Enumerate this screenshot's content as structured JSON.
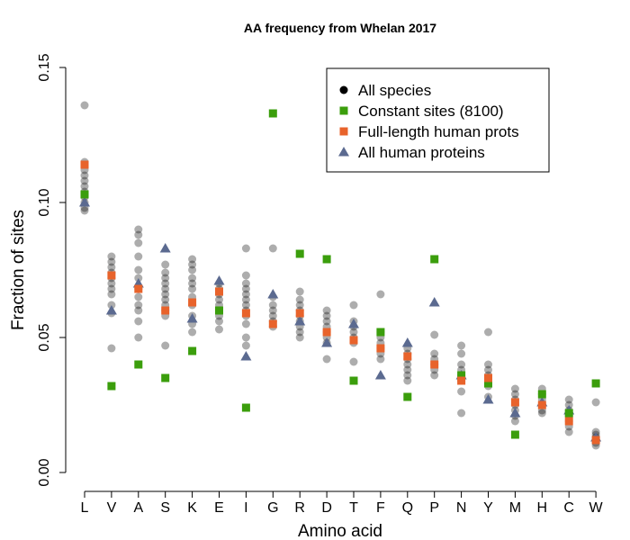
{
  "chart_data": {
    "type": "scatter",
    "title": "AA frequency from Whelan 2017",
    "xlabel": "Amino acid",
    "ylabel": "Fraction of sites",
    "categories": [
      "L",
      "V",
      "A",
      "S",
      "K",
      "E",
      "I",
      "G",
      "R",
      "D",
      "T",
      "F",
      "Q",
      "P",
      "N",
      "Y",
      "M",
      "H",
      "C",
      "W"
    ],
    "ylim": [
      0.0,
      0.15
    ],
    "yticks": [
      "0.00",
      "0.05",
      "0.10",
      "0.15"
    ],
    "grid": false,
    "legend_position": "top-right",
    "series": [
      {
        "name": "All species",
        "marker": "circle",
        "color": "#000000",
        "points": [
          {
            "x": "L",
            "y": [
              0.136,
              0.115,
              0.112,
              0.11,
              0.108,
              0.106,
              0.104,
              0.102,
              0.1,
              0.098,
              0.097
            ]
          },
          {
            "x": "V",
            "y": [
              0.08,
              0.078,
              0.076,
              0.074,
              0.072,
              0.07,
              0.068,
              0.066,
              0.062,
              0.059,
              0.046
            ]
          },
          {
            "x": "A",
            "y": [
              0.09,
              0.088,
              0.085,
              0.08,
              0.075,
              0.072,
              0.068,
              0.065,
              0.062,
              0.06,
              0.056,
              0.05
            ]
          },
          {
            "x": "S",
            "y": [
              0.077,
              0.074,
              0.072,
              0.07,
              0.068,
              0.066,
              0.064,
              0.062,
              0.06,
              0.058,
              0.047
            ]
          },
          {
            "x": "K",
            "y": [
              0.079,
              0.077,
              0.075,
              0.072,
              0.07,
              0.068,
              0.065,
              0.062,
              0.058,
              0.055,
              0.052
            ]
          },
          {
            "x": "E",
            "y": [
              0.07,
              0.068,
              0.066,
              0.064,
              0.062,
              0.06,
              0.058,
              0.056,
              0.053
            ]
          },
          {
            "x": "I",
            "y": [
              0.083,
              0.073,
              0.07,
              0.068,
              0.066,
              0.064,
              0.062,
              0.06,
              0.058,
              0.055,
              0.05,
              0.047
            ]
          },
          {
            "x": "G",
            "y": [
              0.083,
              0.065,
              0.062,
              0.06,
              0.058,
              0.056,
              0.054
            ]
          },
          {
            "x": "R",
            "y": [
              0.067,
              0.064,
              0.062,
              0.06,
              0.058,
              0.056,
              0.054,
              0.052,
              0.05
            ]
          },
          {
            "x": "D",
            "y": [
              0.06,
              0.058,
              0.056,
              0.054,
              0.052,
              0.05,
              0.048,
              0.042
            ]
          },
          {
            "x": "T",
            "y": [
              0.062,
              0.056,
              0.054,
              0.052,
              0.05,
              0.048,
              0.041
            ]
          },
          {
            "x": "F",
            "y": [
              0.066,
              0.052,
              0.05,
              0.048,
              0.046,
              0.044,
              0.042
            ]
          },
          {
            "x": "Q",
            "y": [
              0.046,
              0.044,
              0.042,
              0.04,
              0.038,
              0.036,
              0.034
            ]
          },
          {
            "x": "P",
            "y": [
              0.051,
              0.044,
              0.042,
              0.04,
              0.038,
              0.036
            ]
          },
          {
            "x": "N",
            "y": [
              0.047,
              0.044,
              0.04,
              0.038,
              0.036,
              0.034,
              0.03,
              0.022
            ]
          },
          {
            "x": "Y",
            "y": [
              0.052,
              0.04,
              0.038,
              0.036,
              0.034,
              0.032,
              0.028
            ]
          },
          {
            "x": "M",
            "y": [
              0.031,
              0.029,
              0.027,
              0.025,
              0.023,
              0.021,
              0.019
            ]
          },
          {
            "x": "H",
            "y": [
              0.031,
              0.029,
              0.027,
              0.025,
              0.023,
              0.022
            ]
          },
          {
            "x": "C",
            "y": [
              0.027,
              0.025,
              0.023,
              0.021,
              0.019,
              0.017,
              0.015
            ]
          },
          {
            "x": "W",
            "y": [
              0.026,
              0.015,
              0.014,
              0.013,
              0.012,
              0.011,
              0.01
            ]
          }
        ]
      },
      {
        "name": "Constant sites (8100)",
        "marker": "square",
        "color": "#3b9e0c",
        "values": [
          0.103,
          0.032,
          0.04,
          0.035,
          0.045,
          0.06,
          0.024,
          0.133,
          0.081,
          0.079,
          0.034,
          0.052,
          0.028,
          0.079,
          0.036,
          0.033,
          0.014,
          0.029,
          0.022,
          0.033
        ]
      },
      {
        "name": "Full-length human prots",
        "marker": "square",
        "color": "#e8632b",
        "values": [
          0.114,
          0.073,
          0.068,
          0.06,
          0.063,
          0.067,
          0.059,
          0.055,
          0.059,
          0.052,
          0.049,
          0.046,
          0.043,
          0.04,
          0.034,
          0.035,
          0.026,
          0.025,
          0.019,
          0.012
        ]
      },
      {
        "name": "All human proteins",
        "marker": "triangle",
        "color": "#5b6a90",
        "values": [
          0.1,
          0.06,
          0.07,
          0.083,
          0.057,
          0.071,
          0.043,
          0.066,
          0.056,
          0.048,
          0.055,
          0.036,
          0.048,
          0.063,
          0.036,
          0.027,
          0.022,
          0.026,
          0.023,
          0.013
        ]
      }
    ]
  }
}
